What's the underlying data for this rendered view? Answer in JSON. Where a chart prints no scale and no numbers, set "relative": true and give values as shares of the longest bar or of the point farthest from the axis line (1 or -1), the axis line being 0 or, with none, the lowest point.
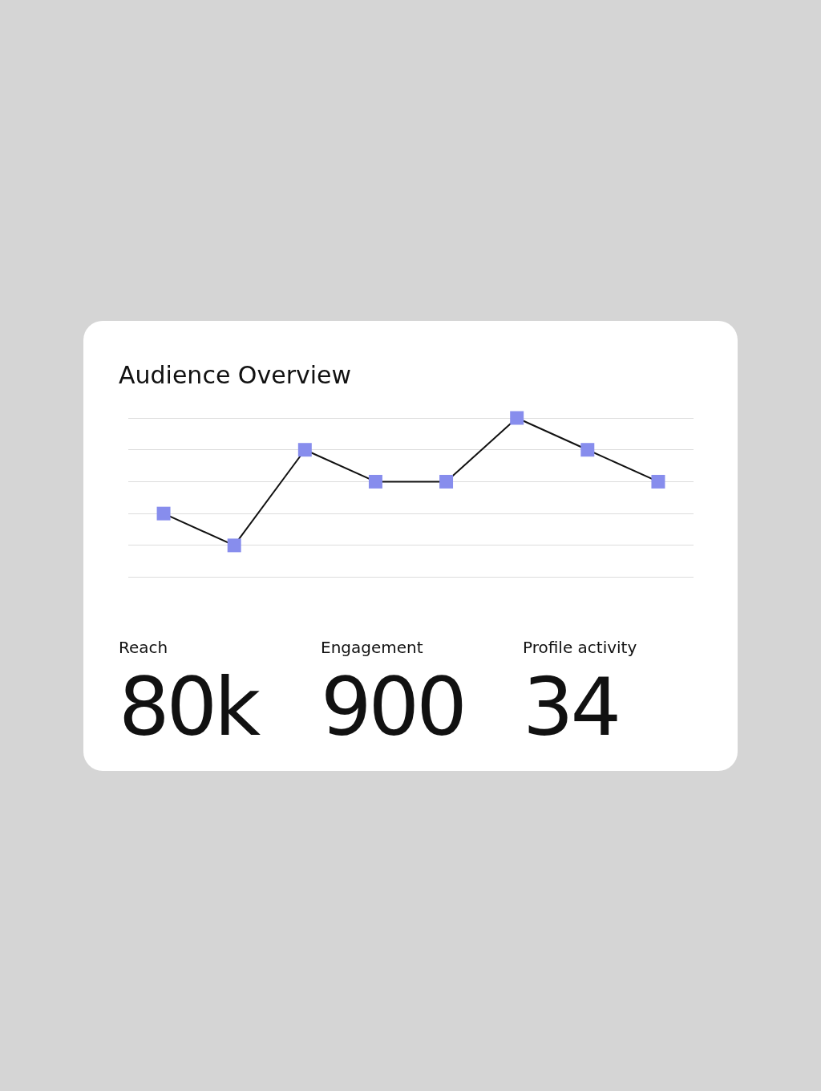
{
  "chart_data": [
    {
      "type": "line",
      "title": "Audience Overview",
      "relative": true,
      "categories": [
        null,
        null,
        null,
        null,
        null,
        null,
        null,
        null
      ],
      "series": [
        {
          "color": "#111111",
          "colors": [
            "#878ded",
            "#878ded",
            "#878ded",
            "#878ded",
            "#878ded",
            "#878ded",
            "#878ded",
            "#878ded"
          ],
          "values": [
            0.4,
            0.2,
            0.8,
            0.6,
            0.6,
            1,
            0.8,
            0.6
          ]
        }
      ],
      "marker": "square",
      "grid": "y",
      "legend": false
    },
    {
      "type": "other",
      "categories": [
        "Reach",
        "Engagement",
        "Profile activity"
      ],
      "value_labels": [
        "80k",
        "900",
        "34"
      ]
    }
  ]
}
